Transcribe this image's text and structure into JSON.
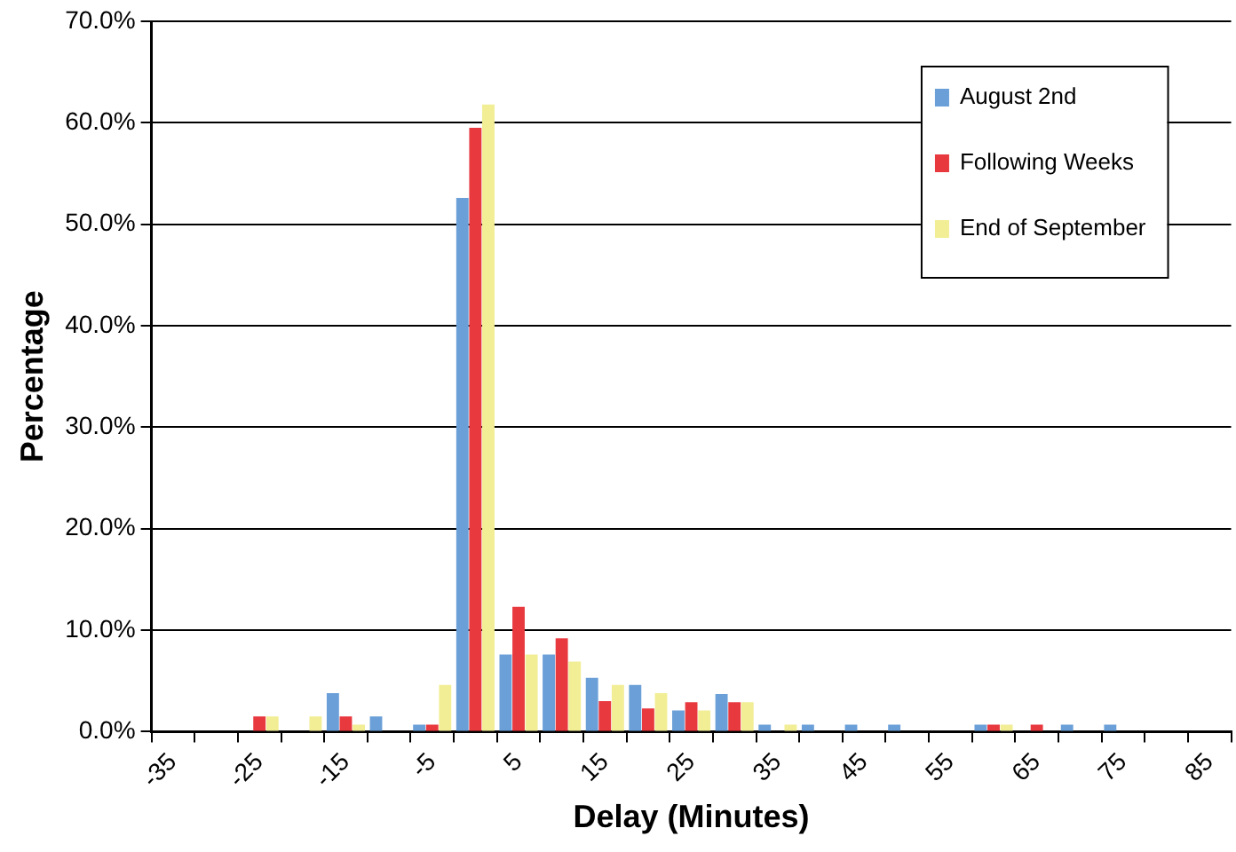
{
  "chart_data": {
    "type": "bar",
    "xlabel": "Delay (Minutes)",
    "ylabel": "Percentage",
    "categories": [
      "-35",
      null,
      "-25",
      null,
      "-15",
      null,
      "-5",
      null,
      "5",
      null,
      "15",
      null,
      "25",
      null,
      "35",
      null,
      "45",
      null,
      "55",
      null,
      "65",
      null,
      "75",
      null,
      "85"
    ],
    "series": [
      {
        "name": "August 2nd",
        "color": "#6a9fd8",
        "values": [
          0,
          0,
          0,
          0,
          3.8,
          1.5,
          0.7,
          52.6,
          7.6,
          7.6,
          5.3,
          4.6,
          2.1,
          3.7,
          0.7,
          0.7,
          0.7,
          0.7,
          0,
          0.7,
          0,
          0.7,
          0.7,
          0,
          0
        ]
      },
      {
        "name": "Following Weeks",
        "color": "#e8393f",
        "values": [
          0,
          0,
          1.5,
          0,
          1.5,
          0,
          0.7,
          59.5,
          12.3,
          9.2,
          3.0,
          2.3,
          2.9,
          2.9,
          0,
          0,
          0,
          0,
          0,
          0.7,
          0.7,
          0,
          0,
          0,
          0
        ]
      },
      {
        "name": "End of September",
        "color": "#f2ee95",
        "values": [
          0,
          0,
          1.5,
          1.5,
          0.7,
          0,
          4.6,
          61.8,
          7.6,
          6.9,
          4.6,
          3.8,
          2.1,
          2.9,
          0.7,
          0,
          0,
          0,
          0,
          0.7,
          0,
          0,
          0,
          0,
          0
        ]
      }
    ],
    "ylim": [
      0,
      70
    ],
    "yticks": [
      {
        "value": 0,
        "label": "0.0%"
      },
      {
        "value": 10,
        "label": "10.0%"
      },
      {
        "value": 20,
        "label": "20.0%"
      },
      {
        "value": 30,
        "label": "30.0%"
      },
      {
        "value": 40,
        "label": "40.0%"
      },
      {
        "value": 50,
        "label": "50.0%"
      },
      {
        "value": 60,
        "label": "60.0%"
      },
      {
        "value": 70,
        "label": "70.0%"
      }
    ],
    "grid": "y",
    "legend": "top right"
  }
}
